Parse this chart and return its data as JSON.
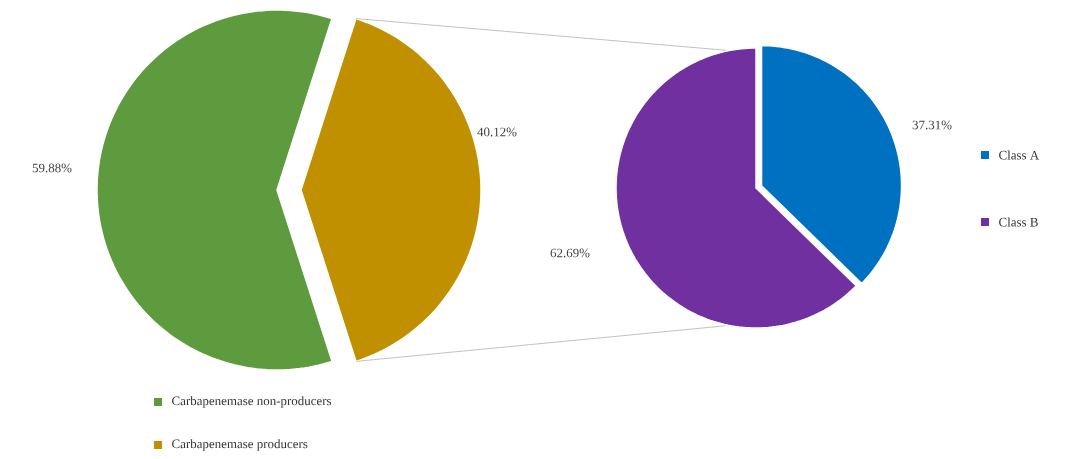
{
  "chart_data": [
    {
      "type": "pie",
      "categories": [
        "Carbapenemase non-producers",
        "Carbapenemase producers"
      ],
      "values": [
        59.88,
        40.12
      ],
      "colors": [
        "#5e9b3e",
        "#c09000"
      ],
      "value_labels": [
        "59.88%",
        "40.12%"
      ],
      "legend": "bottom left"
    },
    {
      "type": "pie",
      "categories": [
        "Class A",
        "Class B"
      ],
      "values": [
        37.31,
        62.69
      ],
      "colors": [
        "#0070c0",
        "#7030a0"
      ],
      "value_labels": [
        "37.31%",
        "62.69%"
      ],
      "legend": "right"
    }
  ]
}
